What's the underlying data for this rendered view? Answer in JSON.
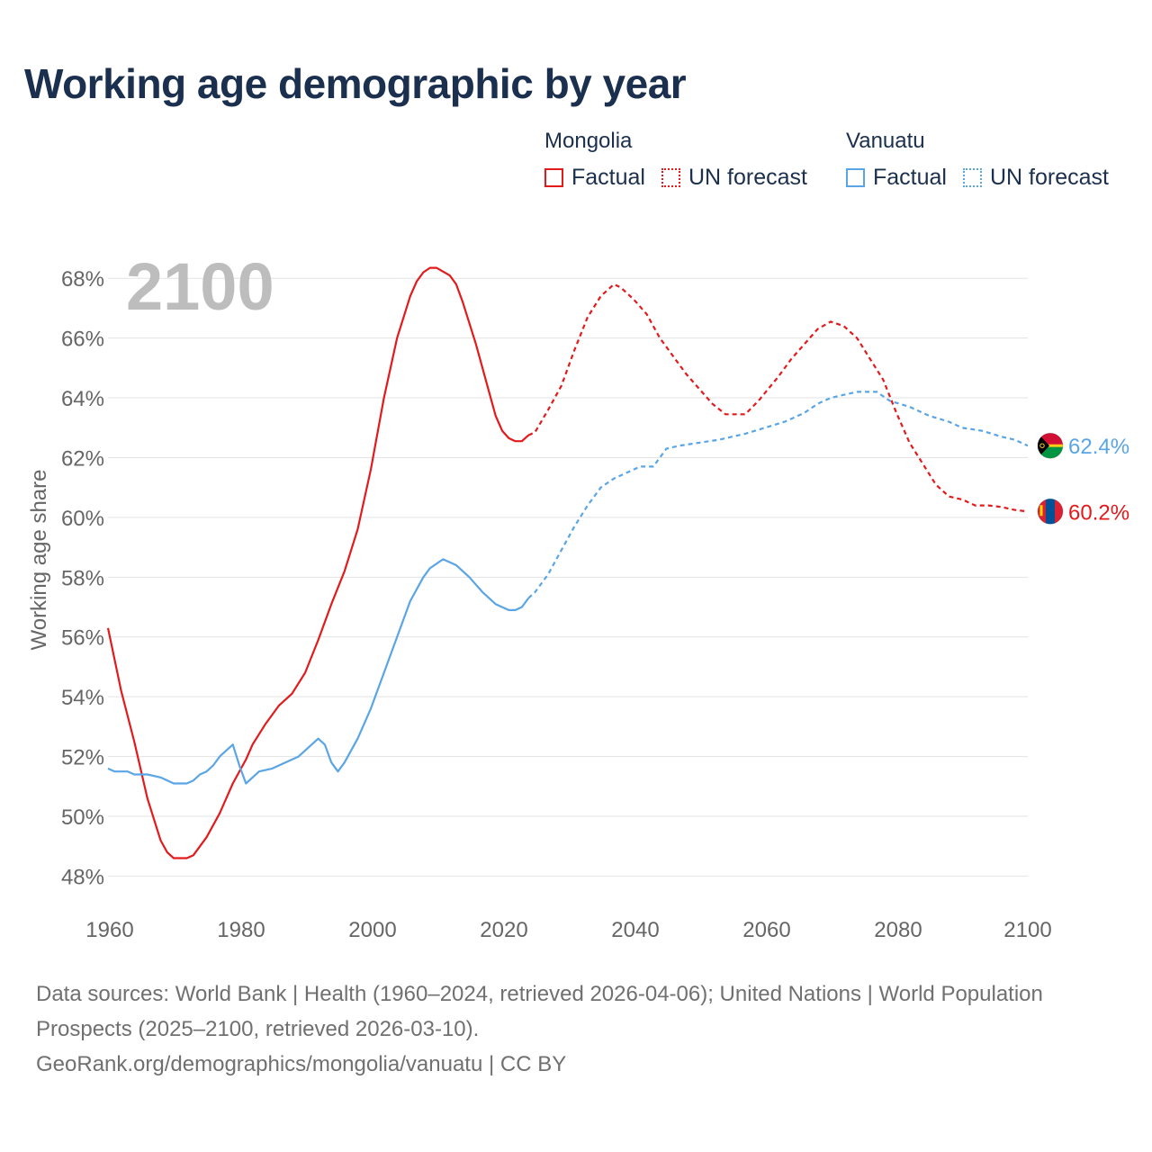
{
  "title": "Working age demographic by year",
  "year_label": "2100",
  "legend": {
    "factual_label": "Factual",
    "forecast_label": "UN forecast",
    "groups": [
      {
        "country": "Mongolia",
        "color": "#e31a1c"
      },
      {
        "country": "Vanuatu",
        "color": "#5aa5e6"
      }
    ]
  },
  "footer": {
    "line1": "Data sources: World Bank | Health (1960–2024, retrieved 2026-04-06); United Nations | World Population Prospects (2025–2100, retrieved 2026-03-10).",
    "line2": "GeoRank.org/demographics/mongolia/vanuatu | CC BY"
  },
  "chart_data": {
    "type": "line",
    "title": "Working age demographic by year",
    "xlabel": "",
    "ylabel": "Working age share",
    "xlim": [
      1960,
      2100
    ],
    "ylim": [
      47.2,
      69
    ],
    "x_ticks": [
      1960,
      1980,
      2000,
      2020,
      2040,
      2060,
      2080,
      2100
    ],
    "y_ticks": [
      48,
      50,
      52,
      54,
      56,
      58,
      60,
      62,
      64,
      66,
      68
    ],
    "y_tick_labels": [
      "48%",
      "50%",
      "52%",
      "54%",
      "56%",
      "58%",
      "60%",
      "62%",
      "64%",
      "66%",
      "68%"
    ],
    "grid": true,
    "forecast_start": 2024,
    "series": [
      {
        "name": "Mongolia",
        "color": "#e31a1c",
        "end_label": "60.2%",
        "points": [
          [
            1960,
            56.3
          ],
          [
            1962,
            54.2
          ],
          [
            1964,
            52.5
          ],
          [
            1966,
            50.6
          ],
          [
            1968,
            49.2
          ],
          [
            1969,
            48.8
          ],
          [
            1970,
            48.6
          ],
          [
            1971,
            48.6
          ],
          [
            1972,
            48.6
          ],
          [
            1973,
            48.7
          ],
          [
            1975,
            49.3
          ],
          [
            1977,
            50.1
          ],
          [
            1979,
            51.1
          ],
          [
            1981,
            51.9
          ],
          [
            1982,
            52.4
          ],
          [
            1984,
            53.1
          ],
          [
            1986,
            53.7
          ],
          [
            1988,
            54.1
          ],
          [
            1990,
            54.8
          ],
          [
            1992,
            55.9
          ],
          [
            1994,
            57.1
          ],
          [
            1996,
            58.2
          ],
          [
            1998,
            59.6
          ],
          [
            2000,
            61.6
          ],
          [
            2002,
            64.0
          ],
          [
            2004,
            66.0
          ],
          [
            2006,
            67.4
          ],
          [
            2007,
            67.9
          ],
          [
            2008,
            68.2
          ],
          [
            2009,
            68.35
          ],
          [
            2010,
            68.35
          ],
          [
            2012,
            68.1
          ],
          [
            2013,
            67.8
          ],
          [
            2014,
            67.2
          ],
          [
            2016,
            65.8
          ],
          [
            2018,
            64.2
          ],
          [
            2019,
            63.4
          ],
          [
            2020,
            62.9
          ],
          [
            2021,
            62.65
          ],
          [
            2022,
            62.55
          ],
          [
            2023,
            62.55
          ],
          [
            2024,
            62.75
          ],
          [
            2025,
            62.85
          ],
          [
            2027,
            63.6
          ],
          [
            2029,
            64.4
          ],
          [
            2031,
            65.6
          ],
          [
            2033,
            66.7
          ],
          [
            2035,
            67.4
          ],
          [
            2037,
            67.8
          ],
          [
            2038,
            67.7
          ],
          [
            2040,
            67.3
          ],
          [
            2042,
            66.8
          ],
          [
            2044,
            66.0
          ],
          [
            2046,
            65.4
          ],
          [
            2048,
            64.8
          ],
          [
            2050,
            64.3
          ],
          [
            2052,
            63.8
          ],
          [
            2054,
            63.45
          ],
          [
            2057,
            63.45
          ],
          [
            2059,
            63.9
          ],
          [
            2062,
            64.7
          ],
          [
            2064,
            65.3
          ],
          [
            2066,
            65.8
          ],
          [
            2068,
            66.3
          ],
          [
            2070,
            66.55
          ],
          [
            2072,
            66.4
          ],
          [
            2074,
            66.0
          ],
          [
            2076,
            65.3
          ],
          [
            2078,
            64.6
          ],
          [
            2080,
            63.5
          ],
          [
            2082,
            62.5
          ],
          [
            2084,
            61.8
          ],
          [
            2086,
            61.1
          ],
          [
            2088,
            60.7
          ],
          [
            2090,
            60.6
          ],
          [
            2092,
            60.4
          ],
          [
            2094,
            60.4
          ],
          [
            2096,
            60.35
          ],
          [
            2098,
            60.25
          ],
          [
            2100,
            60.2
          ]
        ]
      },
      {
        "name": "Vanuatu",
        "color": "#5aa5e6",
        "end_label": "62.4%",
        "points": [
          [
            1960,
            51.6
          ],
          [
            1961,
            51.5
          ],
          [
            1963,
            51.5
          ],
          [
            1964,
            51.4
          ],
          [
            1966,
            51.4
          ],
          [
            1968,
            51.3
          ],
          [
            1970,
            51.1
          ],
          [
            1972,
            51.1
          ],
          [
            1973,
            51.2
          ],
          [
            1974,
            51.4
          ],
          [
            1975,
            51.5
          ],
          [
            1976,
            51.7
          ],
          [
            1977,
            52.0
          ],
          [
            1979,
            52.4
          ],
          [
            1980,
            51.7
          ],
          [
            1981,
            51.1
          ],
          [
            1983,
            51.5
          ],
          [
            1985,
            51.6
          ],
          [
            1987,
            51.8
          ],
          [
            1989,
            52.0
          ],
          [
            1990,
            52.2
          ],
          [
            1992,
            52.6
          ],
          [
            1993,
            52.4
          ],
          [
            1994,
            51.8
          ],
          [
            1995,
            51.5
          ],
          [
            1996,
            51.8
          ],
          [
            1998,
            52.6
          ],
          [
            2000,
            53.6
          ],
          [
            2002,
            54.8
          ],
          [
            2004,
            56.0
          ],
          [
            2006,
            57.2
          ],
          [
            2008,
            58.0
          ],
          [
            2009,
            58.3
          ],
          [
            2011,
            58.6
          ],
          [
            2013,
            58.4
          ],
          [
            2015,
            58.0
          ],
          [
            2017,
            57.5
          ],
          [
            2019,
            57.1
          ],
          [
            2021,
            56.9
          ],
          [
            2022,
            56.9
          ],
          [
            2023,
            57.0
          ],
          [
            2024,
            57.3
          ],
          [
            2025,
            57.5
          ],
          [
            2027,
            58.1
          ],
          [
            2029,
            58.9
          ],
          [
            2031,
            59.7
          ],
          [
            2033,
            60.4
          ],
          [
            2035,
            61.0
          ],
          [
            2037,
            61.3
          ],
          [
            2039,
            61.5
          ],
          [
            2041,
            61.7
          ],
          [
            2043,
            61.7
          ],
          [
            2045,
            62.3
          ],
          [
            2047,
            62.4
          ],
          [
            2050,
            62.5
          ],
          [
            2053,
            62.6
          ],
          [
            2055,
            62.7
          ],
          [
            2057,
            62.8
          ],
          [
            2060,
            63.0
          ],
          [
            2063,
            63.2
          ],
          [
            2066,
            63.5
          ],
          [
            2068,
            63.8
          ],
          [
            2070,
            64.0
          ],
          [
            2072,
            64.1
          ],
          [
            2074,
            64.2
          ],
          [
            2077,
            64.2
          ],
          [
            2079,
            63.9
          ],
          [
            2082,
            63.7
          ],
          [
            2085,
            63.4
          ],
          [
            2088,
            63.2
          ],
          [
            2090,
            63.0
          ],
          [
            2093,
            62.9
          ],
          [
            2096,
            62.7
          ],
          [
            2098,
            62.6
          ],
          [
            2100,
            62.4
          ]
        ]
      }
    ]
  }
}
